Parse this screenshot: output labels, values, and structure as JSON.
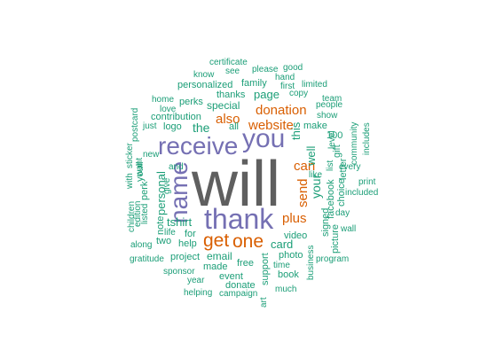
{
  "palette": {
    "gray": "#5f5f5f",
    "purple": "#7570b3",
    "orange": "#d95f02",
    "teal": "#1b9e77"
  },
  "words": [
    {
      "text": "will",
      "color": "gray"
    },
    {
      "text": "thank",
      "color": "purple"
    },
    {
      "text": "receive",
      "color": "purple"
    },
    {
      "text": "you",
      "color": "purple"
    },
    {
      "text": "name",
      "color": "purple"
    },
    {
      "text": "get",
      "color": "orange"
    },
    {
      "text": "one",
      "color": "orange"
    },
    {
      "text": "website",
      "color": "orange"
    },
    {
      "text": "donation",
      "color": "orange"
    },
    {
      "text": "also",
      "color": "orange"
    },
    {
      "text": "can",
      "color": "orange"
    },
    {
      "text": "send",
      "color": "orange"
    },
    {
      "text": "plus",
      "color": "orange"
    },
    {
      "text": "your",
      "color": "teal"
    },
    {
      "text": "well",
      "color": "teal"
    },
    {
      "text": "this",
      "color": "teal"
    },
    {
      "text": "the",
      "color": "teal"
    },
    {
      "text": "tshirt",
      "color": "teal"
    },
    {
      "text": "personal",
      "color": "teal"
    },
    {
      "text": "page",
      "color": "teal"
    },
    {
      "text": "card",
      "color": "teal"
    },
    {
      "text": "email",
      "color": "teal"
    },
    {
      "text": "special",
      "color": "teal"
    },
    {
      "text": "contribution",
      "color": "teal"
    },
    {
      "text": "personalized",
      "color": "teal"
    },
    {
      "text": "thanks",
      "color": "teal"
    },
    {
      "text": "family",
      "color": "teal"
    },
    {
      "text": "perks",
      "color": "teal"
    },
    {
      "text": "logo",
      "color": "teal"
    },
    {
      "text": "gift",
      "color": "teal"
    },
    {
      "text": "make",
      "color": "teal"
    },
    {
      "text": "100",
      "color": "teal"
    },
    {
      "text": "letter",
      "color": "teal"
    },
    {
      "text": "facebook",
      "color": "teal"
    },
    {
      "text": "choice",
      "color": "teal"
    },
    {
      "text": "picture",
      "color": "teal"
    },
    {
      "text": "signed",
      "color": "teal"
    },
    {
      "text": "video",
      "color": "teal"
    },
    {
      "text": "photo",
      "color": "teal"
    },
    {
      "text": "book",
      "color": "teal"
    },
    {
      "text": "support",
      "color": "teal"
    },
    {
      "text": "free",
      "color": "teal"
    },
    {
      "text": "event",
      "color": "teal"
    },
    {
      "text": "donate",
      "color": "teal"
    },
    {
      "text": "made",
      "color": "teal"
    },
    {
      "text": "project",
      "color": "teal"
    },
    {
      "text": "help",
      "color": "teal"
    },
    {
      "text": "for",
      "color": "teal"
    },
    {
      "text": "two",
      "color": "teal"
    },
    {
      "text": "note",
      "color": "teal"
    },
    {
      "text": "youll",
      "color": "teal"
    },
    {
      "text": "perk",
      "color": "teal"
    },
    {
      "text": "listed",
      "color": "teal"
    },
    {
      "text": "edition",
      "color": "teal"
    },
    {
      "text": "give",
      "color": "teal"
    },
    {
      "text": "and",
      "color": "teal"
    },
    {
      "text": "new",
      "color": "teal"
    },
    {
      "text": "just",
      "color": "teal"
    },
    {
      "text": "home",
      "color": "teal"
    },
    {
      "text": "love",
      "color": "teal"
    },
    {
      "text": "postcard",
      "color": "teal"
    },
    {
      "text": "want",
      "color": "teal"
    },
    {
      "text": "with",
      "color": "teal"
    },
    {
      "text": "sticker",
      "color": "teal"
    },
    {
      "text": "children",
      "color": "teal"
    },
    {
      "text": "along",
      "color": "teal"
    },
    {
      "text": "life",
      "color": "teal"
    },
    {
      "text": "gratitude",
      "color": "teal"
    },
    {
      "text": "sponsor",
      "color": "teal"
    },
    {
      "text": "year",
      "color": "teal"
    },
    {
      "text": "helping",
      "color": "teal"
    },
    {
      "text": "campaign",
      "color": "teal"
    },
    {
      "text": "art",
      "color": "teal"
    },
    {
      "text": "much",
      "color": "teal"
    },
    {
      "text": "time",
      "color": "teal"
    },
    {
      "text": "business",
      "color": "teal"
    },
    {
      "text": "program",
      "color": "teal"
    },
    {
      "text": "wall",
      "color": "teal"
    },
    {
      "text": "day",
      "color": "teal"
    },
    {
      "text": "included",
      "color": "teal"
    },
    {
      "text": "print",
      "color": "teal"
    },
    {
      "text": "every",
      "color": "teal"
    },
    {
      "text": "like",
      "color": "teal"
    },
    {
      "text": "list",
      "color": "teal"
    },
    {
      "text": "level",
      "color": "teal"
    },
    {
      "text": "includes",
      "color": "teal"
    },
    {
      "text": "community",
      "color": "teal"
    },
    {
      "text": "show",
      "color": "teal"
    },
    {
      "text": "team",
      "color": "teal"
    },
    {
      "text": "people",
      "color": "teal"
    },
    {
      "text": "limited",
      "color": "teal"
    },
    {
      "text": "copy",
      "color": "teal"
    },
    {
      "text": "first",
      "color": "teal"
    },
    {
      "text": "hand",
      "color": "teal"
    },
    {
      "text": "good",
      "color": "teal"
    },
    {
      "text": "please",
      "color": "teal"
    },
    {
      "text": "see",
      "color": "teal"
    },
    {
      "text": "know",
      "color": "teal"
    },
    {
      "text": "certificate",
      "color": "teal"
    },
    {
      "text": "all",
      "color": "teal"
    }
  ]
}
